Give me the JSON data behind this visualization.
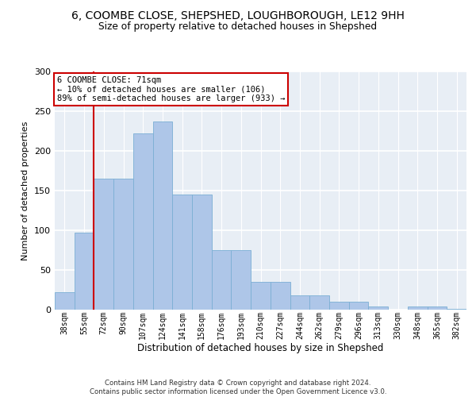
{
  "title_line1": "6, COOMBE CLOSE, SHEPSHED, LOUGHBOROUGH, LE12 9HH",
  "title_line2": "Size of property relative to detached houses in Shepshed",
  "xlabel": "Distribution of detached houses by size in Shepshed",
  "ylabel": "Number of detached properties",
  "bar_labels": [
    "38sqm",
    "55sqm",
    "72sqm",
    "90sqm",
    "107sqm",
    "124sqm",
    "141sqm",
    "158sqm",
    "176sqm",
    "193sqm",
    "210sqm",
    "227sqm",
    "244sqm",
    "262sqm",
    "279sqm",
    "296sqm",
    "313sqm",
    "330sqm",
    "348sqm",
    "365sqm",
    "382sqm"
  ],
  "bar_heights": [
    22,
    97,
    165,
    165,
    222,
    237,
    145,
    145,
    75,
    75,
    35,
    35,
    18,
    18,
    10,
    10,
    4,
    0,
    4,
    4,
    1
  ],
  "bar_color": "#aec6e8",
  "bar_edgecolor": "#7bafd4",
  "vline_pos": 1.5,
  "vline_color": "#cc0000",
  "annotation_text": "6 COOMBE CLOSE: 71sqm\n← 10% of detached houses are smaller (106)\n89% of semi-detached houses are larger (933) →",
  "ann_box_fc": "#ffffff",
  "ann_box_ec": "#cc0000",
  "ylim": [
    0,
    300
  ],
  "yticks": [
    0,
    50,
    100,
    150,
    200,
    250,
    300
  ],
  "bg_color": "#e8eef5",
  "grid_color": "#ffffff",
  "footer_line1": "Contains HM Land Registry data © Crown copyright and database right 2024.",
  "footer_line2": "Contains public sector information licensed under the Open Government Licence v3.0."
}
